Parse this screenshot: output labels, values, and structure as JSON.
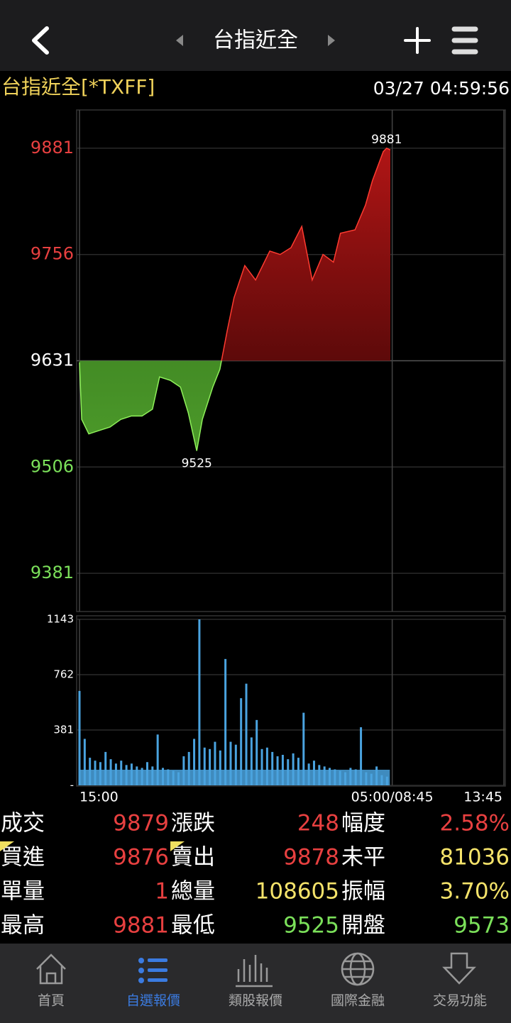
{
  "header": {
    "title": "台指近全"
  },
  "instrument": {
    "name": "台指近全[*TXFF]",
    "time": "03/27 04:59:56"
  },
  "chart_data": [
    {
      "type": "area",
      "base": 9631,
      "up_color": "#ff3b30",
      "down_color": "#8ef05a",
      "x": [
        0,
        6,
        25,
        53,
        82,
        111,
        139,
        168,
        196,
        215,
        244,
        271,
        292,
        315,
        330,
        358,
        377,
        397,
        415,
        444,
        473,
        511,
        539,
        568,
        597,
        625,
        654,
        682,
        701,
        740,
        768,
        787,
        816,
        825,
        835
      ],
      "values": [
        9629,
        9562,
        9545,
        9549,
        9553,
        9562,
        9566,
        9566,
        9574,
        9612,
        9608,
        9600,
        9570,
        9525,
        9562,
        9600,
        9621,
        9667,
        9705,
        9743,
        9726,
        9760,
        9756,
        9764,
        9789,
        9726,
        9756,
        9747,
        9781,
        9785,
        9814,
        9843,
        9877,
        9881,
        9879
      ],
      "xlim": [
        0,
        1140
      ],
      "ylim": [
        9336,
        9926
      ],
      "yticks": [
        9881,
        9756,
        9631,
        9506,
        9381
      ],
      "annotations": [
        {
          "x": 825,
          "value": 9881
        },
        {
          "x": 315,
          "value": 9525
        }
      ]
    },
    {
      "type": "bar",
      "color": "#4aa3df",
      "x": [
        0,
        14,
        28,
        42,
        56,
        70,
        84,
        98,
        112,
        126,
        140,
        154,
        168,
        182,
        196,
        210,
        224,
        238,
        252,
        266,
        280,
        294,
        308,
        322,
        336,
        350,
        364,
        378,
        392,
        406,
        420,
        434,
        448,
        462,
        476,
        490,
        504,
        518,
        532,
        546,
        560,
        574,
        588,
        602,
        616,
        630,
        644,
        658,
        672,
        686,
        700,
        714,
        728,
        742,
        756,
        770,
        784,
        798,
        812,
        826
      ],
      "values": [
        650,
        320,
        190,
        170,
        160,
        230,
        180,
        150,
        170,
        140,
        150,
        130,
        120,
        160,
        130,
        350,
        120,
        110,
        100,
        90,
        200,
        230,
        320,
        1143,
        260,
        250,
        300,
        240,
        870,
        300,
        280,
        600,
        700,
        330,
        450,
        250,
        260,
        230,
        200,
        210,
        180,
        220,
        190,
        500,
        150,
        170,
        140,
        130,
        120,
        110,
        100,
        90,
        120,
        110,
        400,
        90,
        80,
        130,
        70,
        60
      ],
      "xlim": [
        0,
        1140
      ],
      "ylim": [
        0,
        1143
      ],
      "yticks": [
        {
          "value": 0,
          "label": "-"
        },
        381,
        762,
        1143
      ],
      "xticks": [
        {
          "value": 0,
          "label": "15:00"
        },
        {
          "value": 840,
          "label": "05:00/08:45"
        },
        {
          "value": 1140,
          "label": "13:45"
        }
      ]
    }
  ],
  "quotes": [
    {
      "label": "成交",
      "value": "9879",
      "color": "#e84040"
    },
    {
      "label": "漲跌",
      "value": "248",
      "color": "#e84040"
    },
    {
      "label": "幅度",
      "value": "2.58%",
      "color": "#e84040"
    },
    {
      "label": "買進",
      "value": "9876",
      "color": "#e84040"
    },
    {
      "label": "賣出",
      "value": "9878",
      "color": "#e84040"
    },
    {
      "label": "未平",
      "value": "81036",
      "color": "#f5e36a"
    },
    {
      "label": "單量",
      "value": "1",
      "color": "#e84040"
    },
    {
      "label": "總量",
      "value": "108605",
      "color": "#f5e36a"
    },
    {
      "label": "振幅",
      "value": "3.70%",
      "color": "#f5e36a"
    },
    {
      "label": "最高",
      "value": "9881",
      "color": "#e84040"
    },
    {
      "label": "最低",
      "value": "9525",
      "color": "#7be05a"
    },
    {
      "label": "開盤",
      "value": "9573",
      "color": "#7be05a"
    }
  ],
  "tabs": [
    {
      "label": "首頁",
      "active": false
    },
    {
      "label": "自選報價",
      "active": true
    },
    {
      "label": "類股報價",
      "active": false
    },
    {
      "label": "國際金融",
      "active": false
    },
    {
      "label": "交易功能",
      "active": false
    }
  ]
}
